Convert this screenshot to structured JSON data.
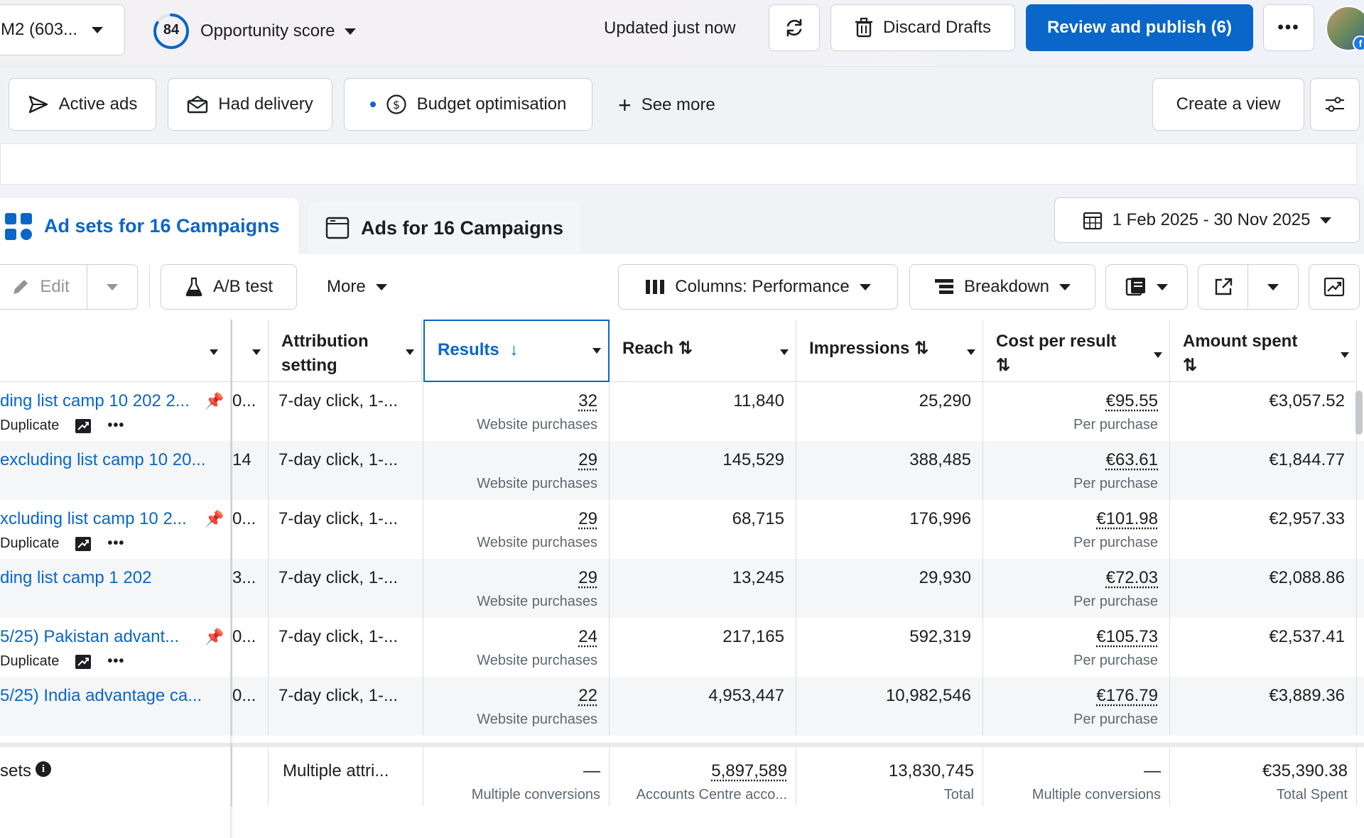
{
  "topbar": {
    "account_label": "M2 (603...",
    "opportunity_score": "84",
    "opportunity_label": "Opportunity score",
    "updated_text": "Updated just now",
    "discard_label": "Discard Drafts",
    "publish_label": "Review and publish (6)",
    "colors": {
      "primary": "#0a66c8"
    }
  },
  "filters": {
    "active_ads": "Active ads",
    "had_delivery": "Had delivery",
    "budget_optimisation": "Budget optimisation",
    "see_more": "See more",
    "create_view": "Create a view"
  },
  "tabs": {
    "ad_sets": "Ad sets for 16 Campaigns",
    "ads": "Ads for 16 Campaigns"
  },
  "date_range": "1 Feb 2025 - 30 Nov 2025",
  "toolbar": {
    "edit": "Edit",
    "ab_test": "A/B test",
    "more": "More",
    "columns": "Columns: Performance",
    "breakdown": "Breakdown"
  },
  "columns": {
    "attribution_line1": "Attribution",
    "attribution_line2": "setting",
    "results": "Results",
    "reach": "Reach",
    "impressions": "Impressions",
    "cost_per_result": "Cost per result",
    "amount_spent": "Amount spent"
  },
  "rows": [
    {
      "name": "ding list camp 10 202 2...",
      "pinned": true,
      "actions": true,
      "col2": "0...",
      "attribution": "7-day click, 1-...",
      "results": "32",
      "results_sub": "Website purchases",
      "reach": "11,840",
      "impressions": "25,290",
      "cost": "€95.55",
      "cost_sub": "Per purchase",
      "spent": "€3,057.52",
      "duplicate": "Duplicate"
    },
    {
      "name": "excluding list camp 10 20...",
      "pinned": false,
      "actions": false,
      "col2": "14",
      "attribution": "7-day click, 1-...",
      "results": "29",
      "results_sub": "Website purchases",
      "reach": "145,529",
      "impressions": "388,485",
      "cost": "€63.61",
      "cost_sub": "Per purchase",
      "spent": "€1,844.77",
      "duplicate": ""
    },
    {
      "name": "xcluding list camp 10 2...",
      "pinned": true,
      "actions": true,
      "col2": "0...",
      "attribution": "7-day click, 1-...",
      "results": "29",
      "results_sub": "Website purchases",
      "reach": "68,715",
      "impressions": "176,996",
      "cost": "€101.98",
      "cost_sub": "Per purchase",
      "spent": "€2,957.33",
      "duplicate": "Duplicate"
    },
    {
      "name": "ding list camp 1 202",
      "pinned": false,
      "actions": false,
      "col2": "3...",
      "attribution": "7-day click, 1-...",
      "results": "29",
      "results_sub": "Website purchases",
      "reach": "13,245",
      "impressions": "29,930",
      "cost": "€72.03",
      "cost_sub": "Per purchase",
      "spent": "€2,088.86",
      "duplicate": ""
    },
    {
      "name": "5/25) Pakistan advant...",
      "pinned": true,
      "actions": true,
      "col2": "0...",
      "attribution": "7-day click, 1-...",
      "results": "24",
      "results_sub": "Website purchases",
      "reach": "217,165",
      "impressions": "592,319",
      "cost": "€105.73",
      "cost_sub": "Per purchase",
      "spent": "€2,537.41",
      "duplicate": "Duplicate"
    },
    {
      "name": "5/25) India advantage ca...",
      "pinned": false,
      "actions": false,
      "col2": "0...",
      "attribution": "7-day click, 1-...",
      "results": "22",
      "results_sub": "Website purchases",
      "reach": "4,953,447",
      "impressions": "10,982,546",
      "cost": "€176.79",
      "cost_sub": "Per purchase",
      "spent": "€3,889.36",
      "duplicate": ""
    }
  ],
  "totals": {
    "label": "sets",
    "attribution": "Multiple attri...",
    "results": "—",
    "results_sub": "Multiple conversions",
    "reach": "5,897,589",
    "reach_sub": "Accounts Centre acco...",
    "impressions": "13,830,745",
    "impressions_sub": "Total",
    "cost": "—",
    "cost_sub": "Multiple conversions",
    "spent": "€35,390.38",
    "spent_sub": "Total Spent"
  }
}
